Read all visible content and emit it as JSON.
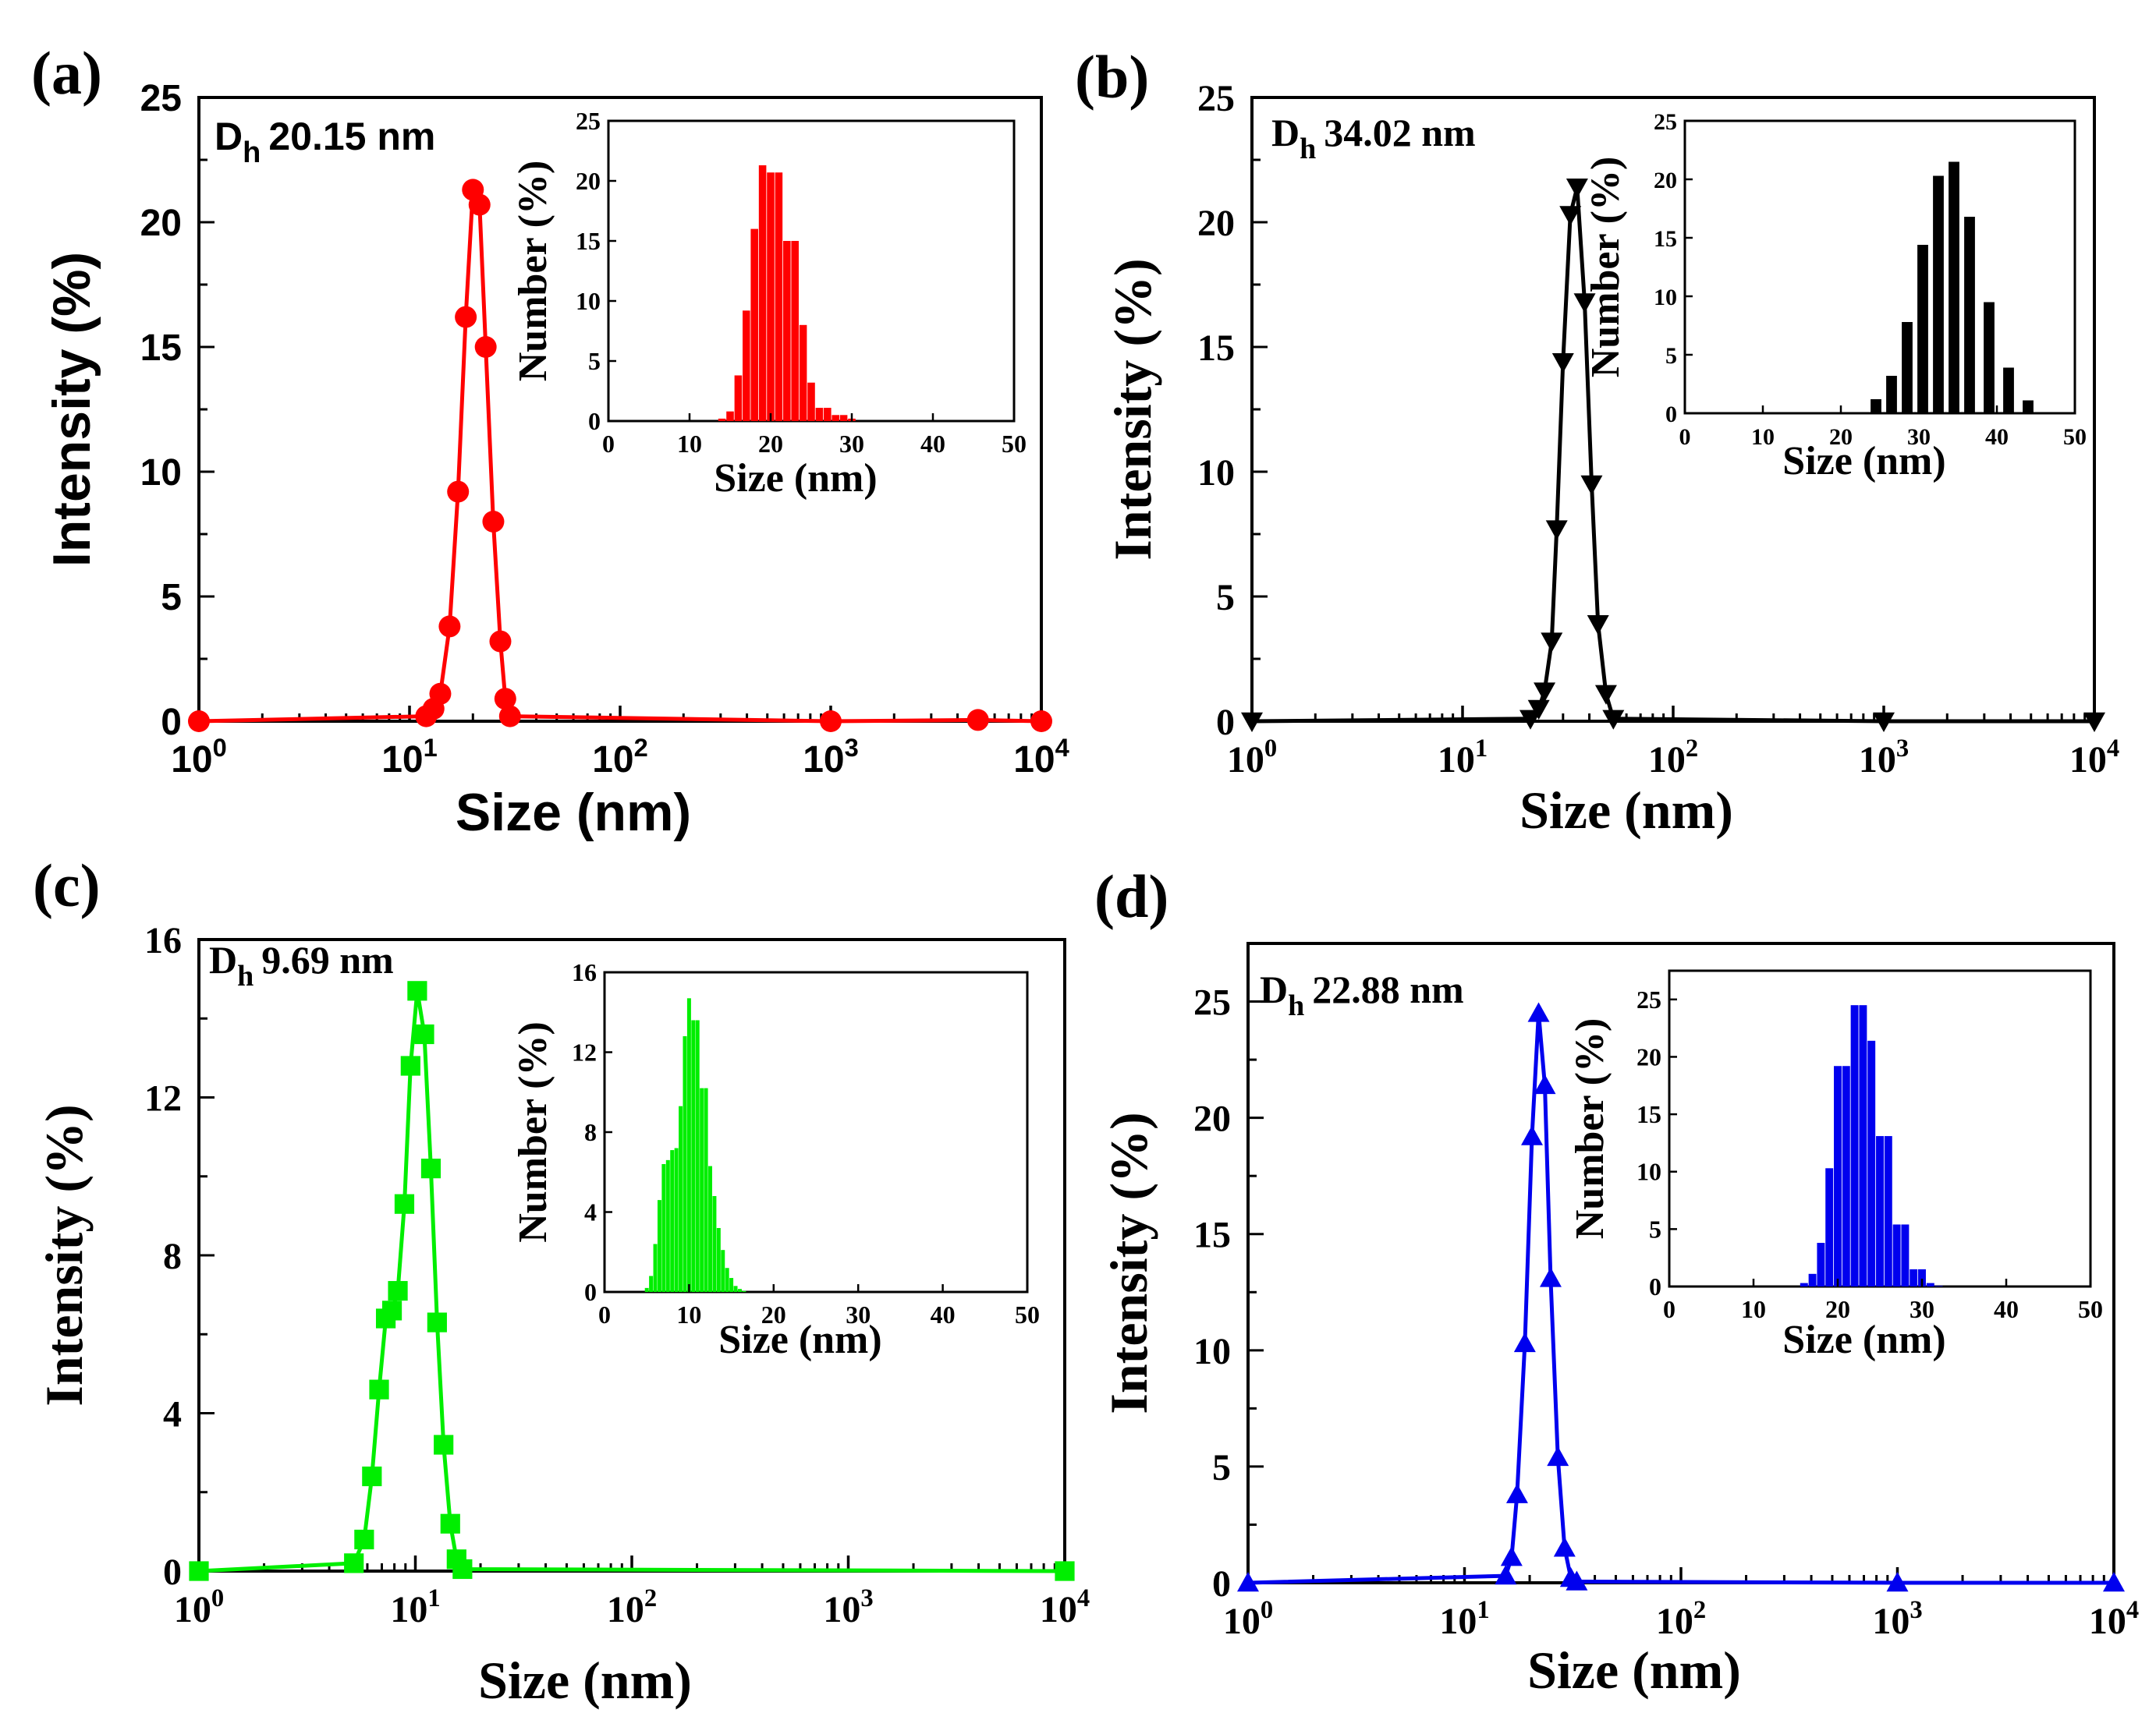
{
  "figure": {
    "panels": [
      {
        "id": "a",
        "label": "(a)",
        "dh_prefix": "D",
        "dh_sub": "h",
        "dh_value": "20.15 nm"
      },
      {
        "id": "b",
        "label": "(b)",
        "dh_prefix": "D",
        "dh_sub": "h",
        "dh_value": "34.02 nm"
      },
      {
        "id": "c",
        "label": "(c)",
        "dh_prefix": "D",
        "dh_sub": "h",
        "dh_value": "9.69 nm"
      },
      {
        "id": "d",
        "label": "(d)",
        "dh_prefix": "D",
        "dh_sub": "h",
        "dh_value": "22.88 nm"
      }
    ]
  },
  "chart_data": [
    {
      "panel": "a",
      "type": "line",
      "x_scale": "log",
      "color": "#ff0000",
      "marker": "circle",
      "title": "",
      "xlabel": "Size (nm)",
      "ylabel": "Intensity (%)",
      "xlim": [
        1,
        10000
      ],
      "ylim": [
        0,
        25
      ],
      "x_ticks": [
        1,
        10,
        100,
        1000,
        10000
      ],
      "x_tick_exponents": [
        "0",
        "1",
        "2",
        "3",
        "4"
      ],
      "y_ticks": [
        0,
        5,
        10,
        15,
        20,
        25
      ],
      "y_tick_labels": [
        "0",
        "5",
        "10",
        "15",
        "20",
        "25"
      ],
      "x": [
        1,
        12,
        13,
        14,
        15.5,
        17,
        18.5,
        20,
        21.5,
        23,
        25,
        27,
        28.5,
        30,
        1000,
        5000,
        10000
      ],
      "y": [
        0,
        0.2,
        0.5,
        1.1,
        3.8,
        9.2,
        16.2,
        21.3,
        20.7,
        15,
        8,
        3.2,
        0.9,
        0.2,
        0,
        0.05,
        0
      ],
      "inset": {
        "type": "bar",
        "xlabel": "Size (nm)",
        "ylabel": "Number (%)",
        "xlim": [
          0,
          50
        ],
        "ylim": [
          0,
          25
        ],
        "x_ticks": [
          0,
          10,
          20,
          30,
          40,
          50
        ],
        "x_tick_labels": [
          "0",
          "10",
          "20",
          "30",
          "40",
          "50"
        ],
        "y_ticks": [
          0,
          5,
          10,
          15,
          20,
          25
        ],
        "y_tick_labels": [
          "0",
          "5",
          "10",
          "15",
          "20",
          "25"
        ],
        "bar_width": 1,
        "x": [
          14,
          15,
          16,
          17,
          18,
          19,
          20,
          21,
          22,
          23,
          24,
          25,
          26,
          27,
          28,
          29,
          30
        ],
        "values": [
          0.2,
          0.8,
          3.8,
          9.2,
          16,
          21.3,
          20.7,
          20.7,
          15,
          15,
          8,
          3.2,
          1.1,
          1.1,
          0.5,
          0.5,
          0.2
        ]
      }
    },
    {
      "panel": "b",
      "type": "line",
      "x_scale": "log",
      "color": "#000000",
      "marker": "triangle-down",
      "title": "",
      "xlabel": "Size (nm)",
      "ylabel": "Intensity (%)",
      "xlim": [
        1,
        10000
      ],
      "ylim": [
        0,
        25
      ],
      "x_ticks": [
        1,
        10,
        100,
        1000,
        10000
      ],
      "x_tick_exponents": [
        "0",
        "1",
        "2",
        "3",
        "4"
      ],
      "y_ticks": [
        0,
        5,
        10,
        15,
        20,
        25
      ],
      "y_tick_labels": [
        "0",
        "5",
        "10",
        "15",
        "20",
        "25"
      ],
      "x": [
        1,
        21,
        23,
        24.5,
        26.5,
        28,
        30,
        32.5,
        35,
        38,
        41,
        44,
        48,
        52,
        1000,
        10000
      ],
      "y": [
        0,
        0.1,
        0.5,
        1.2,
        3.2,
        7.7,
        14.4,
        20.3,
        21.4,
        16.8,
        9.5,
        3.9,
        1.1,
        0.1,
        0,
        0
      ],
      "inset": {
        "type": "bar",
        "xlabel": "Size (nm)",
        "ylabel": "Number (%)",
        "xlim": [
          0,
          50
        ],
        "ylim": [
          0,
          25
        ],
        "x_ticks": [
          0,
          10,
          20,
          30,
          40,
          50
        ],
        "x_tick_labels": [
          "0",
          "10",
          "20",
          "30",
          "40",
          "50"
        ],
        "y_ticks": [
          0,
          5,
          10,
          15,
          20,
          25
        ],
        "y_tick_labels": [
          "0",
          "5",
          "10",
          "15",
          "20",
          "25"
        ],
        "bar_width": 1.5,
        "x": [
          23,
          24.5,
          26.5,
          28.5,
          30.5,
          32.5,
          34.5,
          36.5,
          39,
          41.5,
          44,
          47
        ],
        "values": [
          0.1,
          1.2,
          3.2,
          7.8,
          14.4,
          20.3,
          21.5,
          16.8,
          9.5,
          3.9,
          1.1,
          0.1
        ]
      }
    },
    {
      "panel": "c",
      "type": "line",
      "x_scale": "log",
      "color": "#00ee00",
      "marker": "square",
      "title": "",
      "xlabel": "Size (nm)",
      "ylabel": "Intensity (%)",
      "xlim": [
        1,
        10000
      ],
      "ylim": [
        0,
        16
      ],
      "x_ticks": [
        1,
        10,
        100,
        1000,
        10000
      ],
      "x_tick_exponents": [
        "0",
        "1",
        "2",
        "3",
        "4"
      ],
      "y_ticks": [
        0,
        4,
        8,
        12,
        16
      ],
      "y_tick_labels": [
        "0",
        "4",
        "8",
        "12",
        "16"
      ],
      "x": [
        1,
        5.2,
        5.8,
        6.3,
        6.8,
        7.3,
        7.8,
        8.3,
        8.9,
        9.5,
        10.2,
        11,
        11.8,
        12.6,
        13.5,
        14.5,
        15.5,
        16.5,
        10000
      ],
      "y": [
        0,
        0.2,
        0.8,
        2.4,
        4.6,
        6.4,
        6.6,
        7.1,
        9.3,
        12.8,
        14.7,
        13.6,
        10.2,
        6.3,
        3.2,
        1.2,
        0.3,
        0.05,
        0
      ],
      "inset": {
        "type": "bar",
        "xlabel": "Size (nm)",
        "ylabel": "Number (%)",
        "xlim": [
          0,
          50
        ],
        "ylim": [
          0,
          16
        ],
        "x_ticks": [
          0,
          10,
          20,
          30,
          40,
          50
        ],
        "x_tick_labels": [
          "0",
          "10",
          "20",
          "30",
          "40",
          "50"
        ],
        "y_ticks": [
          0,
          4,
          8,
          12,
          16
        ],
        "y_tick_labels": [
          "0",
          "4",
          "8",
          "12",
          "16"
        ],
        "bar_width": 0.5,
        "x": [
          5,
          5.5,
          6,
          6.5,
          7,
          7.5,
          8,
          8.5,
          9,
          9.5,
          10,
          10.5,
          11,
          11.5,
          12,
          12.5,
          13,
          13.5,
          14,
          14.5,
          15,
          15.5,
          16,
          16.5
        ],
        "values": [
          0.2,
          0.8,
          2.4,
          4.6,
          6.4,
          6.6,
          7.1,
          7.2,
          9.3,
          12.8,
          14.7,
          13.6,
          13.6,
          10.2,
          10.2,
          6.3,
          4.8,
          3.2,
          2.1,
          1.2,
          0.7,
          0.3,
          0.15,
          0.05
        ]
      }
    },
    {
      "panel": "d",
      "type": "line",
      "x_scale": "log",
      "color": "#0000ee",
      "marker": "triangle-up",
      "title": "",
      "xlabel": "Size (nm)",
      "ylabel": "Intensity (%)",
      "xlim": [
        1,
        10000
      ],
      "ylim": [
        0,
        27.5
      ],
      "x_ticks": [
        1,
        10,
        100,
        1000,
        10000
      ],
      "x_tick_exponents": [
        "0",
        "1",
        "2",
        "3",
        "4"
      ],
      "y_ticks": [
        0,
        5,
        10,
        15,
        20,
        25
      ],
      "y_tick_labels": [
        "0",
        "5",
        "10",
        "15",
        "20",
        "25"
      ],
      "x": [
        1,
        15.5,
        16.5,
        17.5,
        19,
        20.5,
        22,
        23.5,
        25,
        27,
        29,
        31,
        33,
        1000,
        10000
      ],
      "y": [
        0,
        0.3,
        1.1,
        3.8,
        10.3,
        19.2,
        24.5,
        21.4,
        13.1,
        5.4,
        1.5,
        0.2,
        0.05,
        0,
        0
      ],
      "inset": {
        "type": "bar",
        "xlabel": "Size (nm)",
        "ylabel": "Number (%)",
        "xlim": [
          0,
          50
        ],
        "ylim": [
          0,
          27.5
        ],
        "x_ticks": [
          0,
          10,
          20,
          30,
          40,
          50
        ],
        "x_tick_labels": [
          "0",
          "10",
          "20",
          "30",
          "40",
          "50"
        ],
        "y_ticks": [
          0,
          5,
          10,
          15,
          20,
          25
        ],
        "y_tick_labels": [
          "0",
          "5",
          "10",
          "15",
          "20",
          "25"
        ],
        "bar_width": 1,
        "x": [
          16,
          17,
          18,
          19,
          20,
          21,
          22,
          23,
          24,
          25,
          26,
          27,
          28,
          29,
          30,
          31,
          32
        ],
        "values": [
          0.3,
          1.1,
          3.8,
          10.3,
          19.2,
          19.2,
          24.5,
          24.5,
          21.4,
          13.1,
          13.1,
          5.4,
          5.4,
          1.5,
          1.5,
          0.3,
          0.05
        ]
      }
    }
  ]
}
